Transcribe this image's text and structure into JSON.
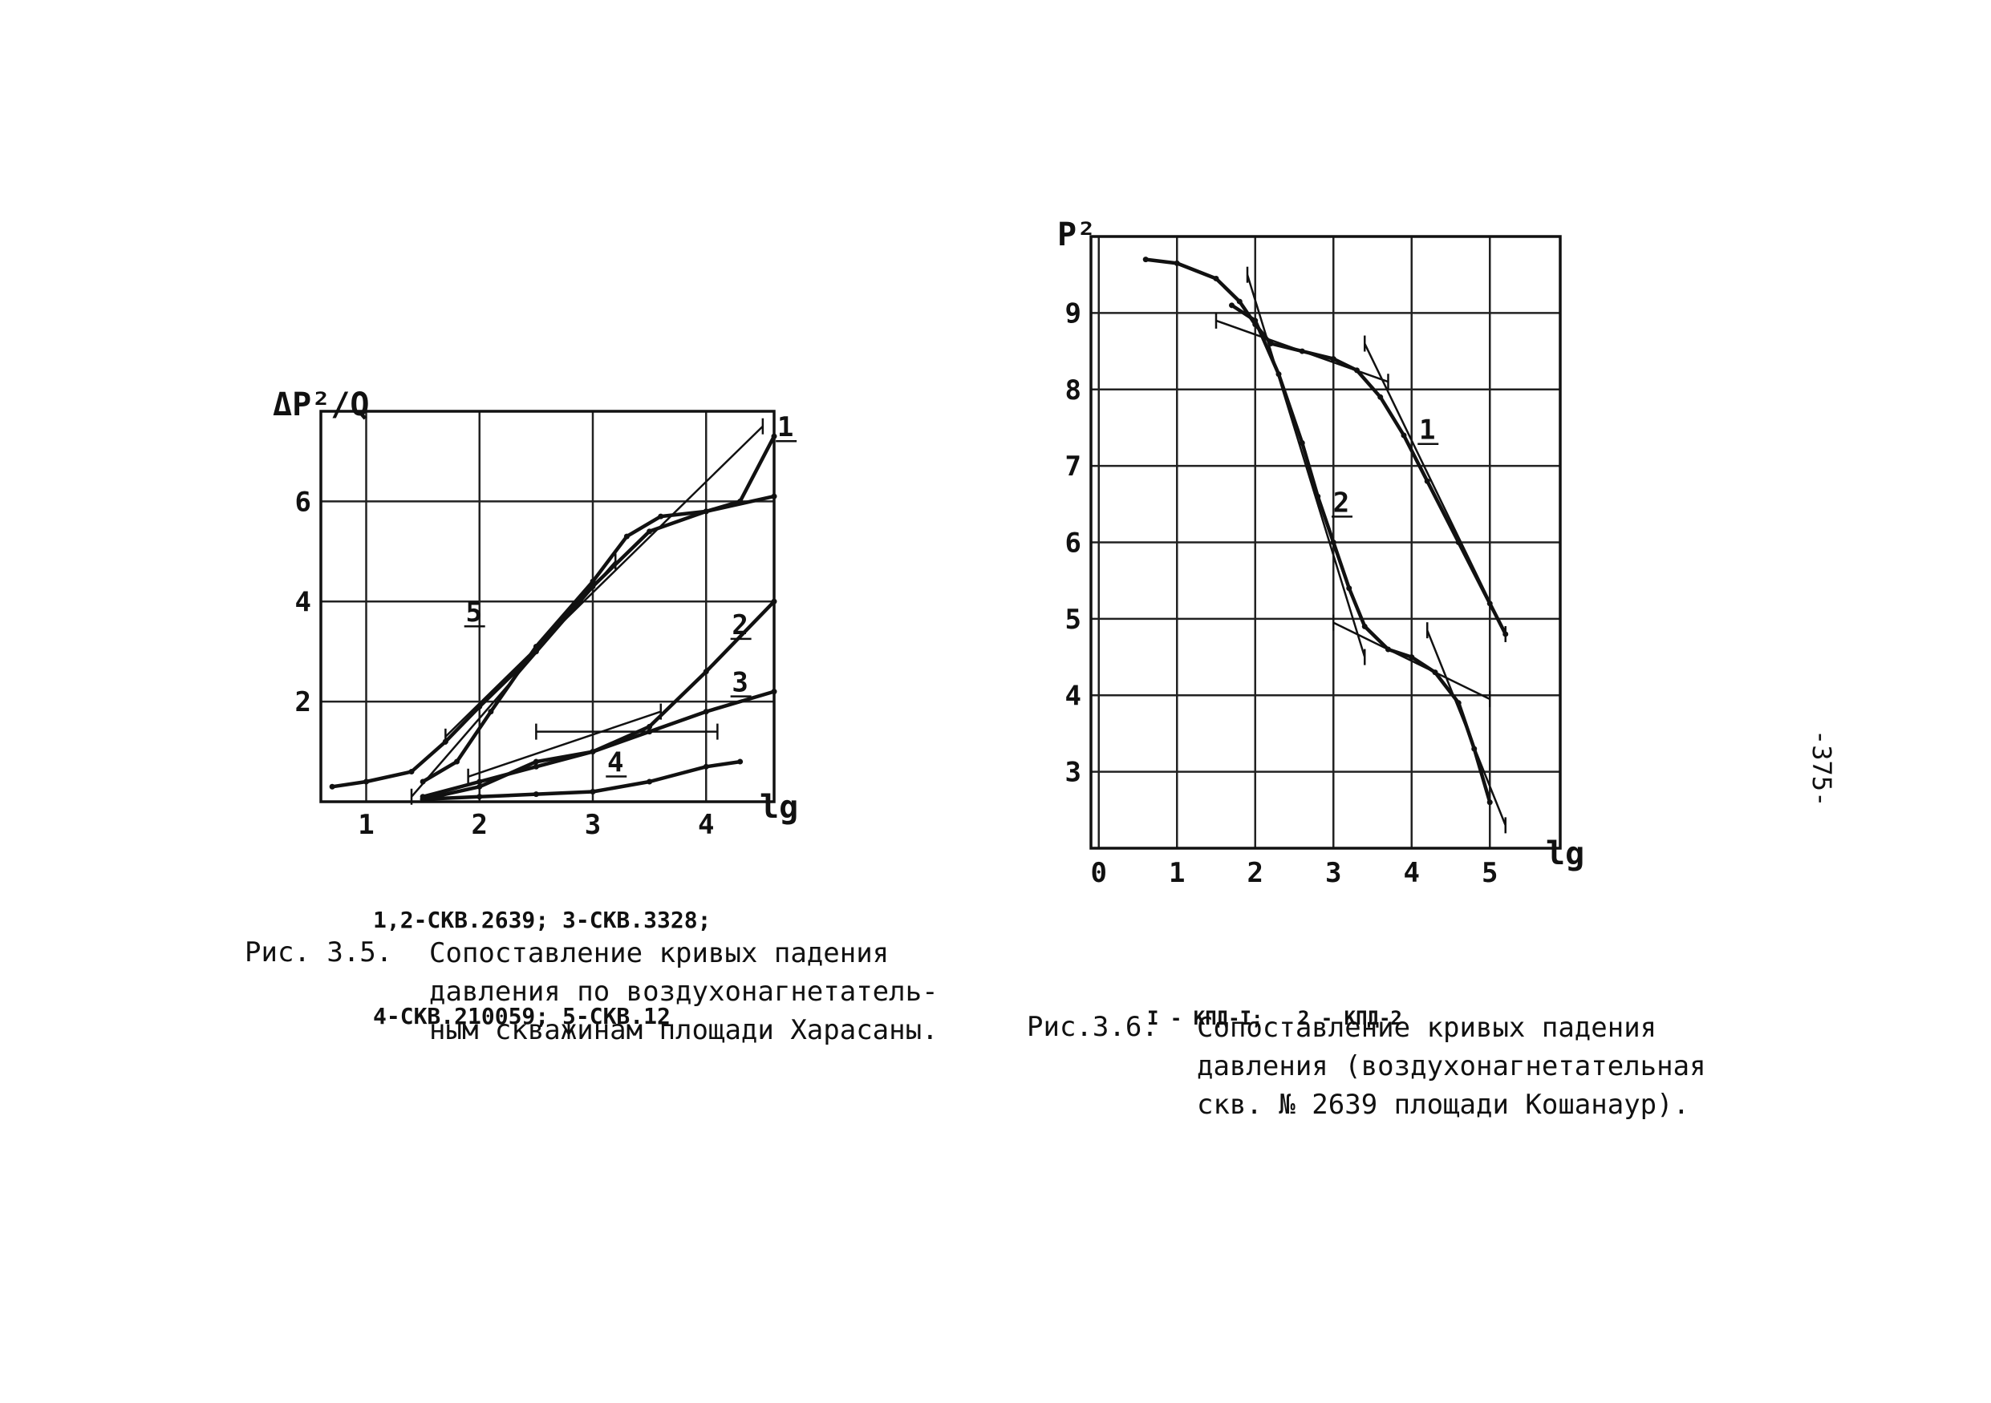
{
  "chart_data": [
    {
      "type": "line",
      "title": "",
      "ylabel": "ΔP²/Q",
      "xlabel": "lg t",
      "xlim": [
        0.6,
        4.6
      ],
      "ylim": [
        0,
        7.8
      ],
      "x_ticks": [
        1,
        2,
        3,
        4
      ],
      "y_ticks": [
        2,
        4,
        6
      ],
      "grid": true,
      "series": [
        {
          "label": "1",
          "label_at": [
            4.7,
            7.3
          ],
          "x": [
            1.5,
            1.8,
            2.1,
            2.5,
            3.0,
            3.3,
            3.6,
            4.0,
            4.3,
            4.6
          ],
          "y": [
            0.4,
            0.8,
            1.8,
            3.1,
            4.4,
            5.3,
            5.7,
            5.8,
            6.0,
            7.3
          ]
        },
        {
          "label": "2",
          "label_at": [
            4.3,
            3.35
          ],
          "x": [
            1.5,
            2.0,
            2.5,
            3.0,
            3.5,
            4.0,
            4.6
          ],
          "y": [
            0.05,
            0.3,
            0.8,
            1.0,
            1.5,
            2.6,
            4.0
          ]
        },
        {
          "label": "3",
          "label_at": [
            4.3,
            2.2
          ],
          "x": [
            1.5,
            2.0,
            2.5,
            3.0,
            3.5,
            4.0,
            4.6
          ],
          "y": [
            0.1,
            0.4,
            0.7,
            1.0,
            1.4,
            1.8,
            2.2
          ]
        },
        {
          "label": "4",
          "label_at": [
            3.2,
            0.6
          ],
          "x": [
            1.5,
            2.0,
            2.5,
            3.0,
            3.5,
            4.0,
            4.3
          ],
          "y": [
            0.05,
            0.1,
            0.15,
            0.2,
            0.4,
            0.7,
            0.8
          ]
        },
        {
          "label": "5",
          "label_at": [
            1.95,
            3.6
          ],
          "x": [
            0.7,
            1.0,
            1.4,
            1.7,
            2.0,
            2.5,
            3.0,
            3.5,
            4.0,
            4.6
          ],
          "y": [
            0.3,
            0.4,
            0.6,
            1.2,
            1.9,
            3.0,
            4.3,
            5.4,
            5.8,
            6.1
          ]
        }
      ],
      "fits": [
        {
          "x": [
            1.4,
            3.2
          ],
          "y": [
            0.1,
            4.8
          ]
        },
        {
          "x": [
            1.7,
            4.5
          ],
          "y": [
            1.3,
            7.5
          ]
        },
        {
          "x": [
            1.9,
            3.6
          ],
          "y": [
            0.5,
            1.8
          ]
        },
        {
          "x": [
            2.5,
            4.1
          ],
          "y": [
            1.4,
            1.4
          ]
        }
      ],
      "legend": [
        "1,2-СКВ.2639; 3-СКВ.3328;",
        "4-СКВ.210059; 5-СКВ.12"
      ]
    },
    {
      "type": "line",
      "title": "",
      "ylabel": "P²",
      "xlabel": "lg t",
      "xlim": [
        -0.1,
        5.9
      ],
      "ylim": [
        2.0,
        10.0
      ],
      "x_ticks": [
        0,
        1,
        2,
        3,
        4,
        5
      ],
      "y_ticks": [
        3,
        4,
        5,
        6,
        7,
        8,
        9
      ],
      "grid": true,
      "series": [
        {
          "label": "1",
          "label_at": [
            4.2,
            7.35
          ],
          "x": [
            0.6,
            1.0,
            1.5,
            1.8,
            2.0,
            2.2,
            2.6,
            3.0,
            3.3,
            3.6,
            3.9,
            4.2,
            4.6,
            5.0,
            5.2
          ],
          "y": [
            9.7,
            9.65,
            9.45,
            9.15,
            8.85,
            8.6,
            8.5,
            8.4,
            8.25,
            7.9,
            7.4,
            6.8,
            6.0,
            5.2,
            4.8
          ]
        },
        {
          "label": "2",
          "label_at": [
            3.1,
            6.4
          ],
          "x": [
            1.7,
            2.0,
            2.3,
            2.6,
            2.8,
            3.0,
            3.2,
            3.4,
            3.7,
            4.0,
            4.3,
            4.6,
            4.8,
            5.0
          ],
          "y": [
            9.1,
            8.9,
            8.2,
            7.3,
            6.6,
            6.0,
            5.4,
            4.9,
            4.6,
            4.5,
            4.3,
            3.9,
            3.3,
            2.6
          ]
        }
      ],
      "fits": [
        {
          "x": [
            1.5,
            3.7
          ],
          "y": [
            8.9,
            8.1
          ]
        },
        {
          "x": [
            1.9,
            3.4
          ],
          "y": [
            9.5,
            4.5
          ]
        },
        {
          "x": [
            3.4,
            5.2
          ],
          "y": [
            8.6,
            4.8
          ]
        },
        {
          "x": [
            3.0,
            5.0
          ],
          "y": [
            4.95,
            3.95
          ]
        },
        {
          "x": [
            4.2,
            5.2
          ],
          "y": [
            4.85,
            2.3
          ]
        }
      ],
      "legend": [
        "I - КПД-I;   2 - КПД-2"
      ]
    }
  ],
  "captions": {
    "left": {
      "number": "Рис. 3.5.",
      "lines": [
        "Сопоставление кривых падения",
        "давления по воздухонагнетатель-",
        "ным скважинам площади Харасаны."
      ]
    },
    "right": {
      "number": "Рис.3.6.",
      "lines": [
        "Сопоставление кривых падения",
        "давления (воздухонагнетательная",
        "скв. № 2639 площади Кошанаур)."
      ]
    }
  },
  "page_number": "-375-"
}
